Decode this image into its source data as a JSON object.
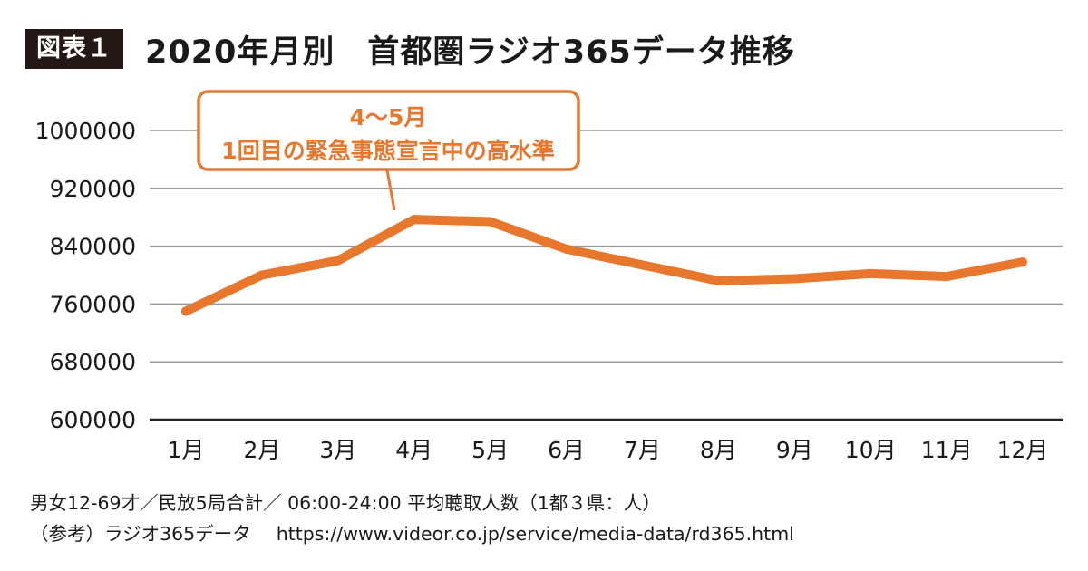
{
  "header": {
    "figure_label": "図表１",
    "title": "2020年月別　首都圏ラジオ365データ推移"
  },
  "chart_data": {
    "type": "line",
    "categories": [
      "1月",
      "2月",
      "3月",
      "4月",
      "5月",
      "6月",
      "7月",
      "8月",
      "9月",
      "10月",
      "11月",
      "12月"
    ],
    "series": [
      {
        "values": [
          750000,
          800000,
          820000,
          877000,
          874000,
          836000,
          814000,
          792000,
          795000,
          802000,
          798000,
          818000
        ]
      }
    ],
    "ylim": [
      600000,
      1000000
    ],
    "yticks": [
      600000,
      680000,
      760000,
      840000,
      920000,
      1000000
    ],
    "grid": true,
    "line_color": "#e8772e",
    "annotation": {
      "line1": "4～5月",
      "line2": "1回目の緊急事態宣言中の高水準",
      "color": "#e8772e"
    }
  },
  "footer": {
    "note": "男女12-69才／民放5局合計／ 06:00-24:00 平均聴取人数（1都３県：人）",
    "source_label": "（参考）ラジオ365データ",
    "source_url": "https://www.videor.co.jp/service/media-data/rd365.html"
  }
}
